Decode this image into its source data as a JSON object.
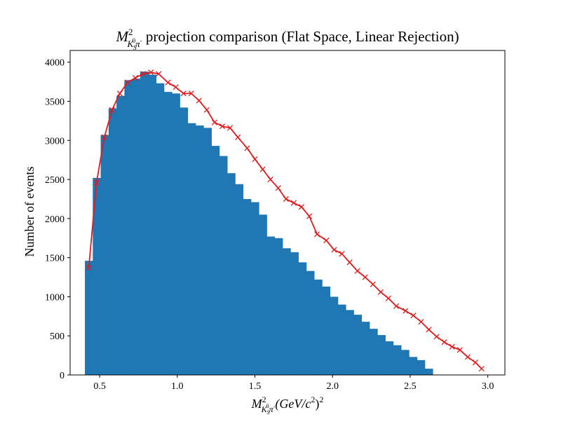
{
  "colors": {
    "bar": "#1f77b4",
    "curve": "#e31a1c",
    "axes": "#000000",
    "background": "#ffffff"
  },
  "title": {
    "prefix": "M",
    "sup": "2",
    "sub_main": "K",
    "sub_sub": "S",
    "sub_sup": "0",
    "sub_tail": "π",
    "sub_charge": "-",
    "rest": " projection comparison (Flat Space, Linear Rejection)"
  },
  "xlabel": {
    "prefix": "M",
    "sup": "2",
    "sub_main": "K",
    "sub_sub": "S",
    "sub_sup": "0",
    "sub_tail": "π",
    "sub_charge": "-",
    "rest": "(GeV/c",
    "rest_sup": "2",
    "rest_close": ")",
    "rest_close_sup": "2"
  },
  "chart_data": {
    "type": "bar",
    "title": "M²_{K_S^0π⁻} projection comparison (Flat Space, Linear Rejection)",
    "ylabel": "Number of events",
    "xlim": [
      0.31,
      3.11
    ],
    "ylim": [
      0,
      4150
    ],
    "grid": false,
    "legend": "none",
    "x_ticks": [
      0.5,
      1.0,
      1.5,
      2.0,
      2.5,
      3.0
    ],
    "x_tick_labels": [
      "0.5",
      "1.0",
      "1.5",
      "2.0",
      "2.5",
      "3.0"
    ],
    "y_ticks": [
      0,
      500,
      1000,
      1500,
      2000,
      2500,
      3000,
      3500,
      4000
    ],
    "y_tick_labels": [
      "0",
      "500",
      "1000",
      "1500",
      "2000",
      "2500",
      "3000",
      "3500",
      "4000"
    ],
    "histogram": {
      "name": "",
      "bin_start": 0.405,
      "bin_width": 0.0509,
      "values": [
        1460,
        2520,
        3070,
        3410,
        3570,
        3770,
        3790,
        3880,
        3840,
        3730,
        3620,
        3600,
        3420,
        3220,
        3190,
        3160,
        2930,
        2800,
        2580,
        2440,
        2250,
        2210,
        2050,
        1770,
        1750,
        1620,
        1570,
        1440,
        1330,
        1220,
        1130,
        1000,
        900,
        830,
        770,
        680,
        590,
        510,
        430,
        380,
        320,
        230,
        190,
        80
      ]
    },
    "series": [
      {
        "name": "",
        "type": "line",
        "marker": "x",
        "x": [
          0.43,
          0.48,
          0.53,
          0.58,
          0.63,
          0.68,
          0.73,
          0.78,
          0.83,
          0.88,
          0.94,
          0.99,
          1.04,
          1.09,
          1.14,
          1.19,
          1.24,
          1.29,
          1.34,
          1.39,
          1.45,
          1.5,
          1.55,
          1.6,
          1.65,
          1.7,
          1.75,
          1.8,
          1.85,
          1.9,
          1.96,
          2.01,
          2.06,
          2.11,
          2.16,
          2.21,
          2.26,
          2.31,
          2.36,
          2.41,
          2.47,
          2.52,
          2.57,
          2.62,
          2.67,
          2.72,
          2.77,
          2.82,
          2.87,
          2.92,
          2.96
        ],
        "y": [
          1370,
          2460,
          3040,
          3390,
          3600,
          3740,
          3800,
          3850,
          3870,
          3850,
          3740,
          3680,
          3600,
          3600,
          3510,
          3390,
          3230,
          3180,
          3160,
          3040,
          2900,
          2760,
          2630,
          2500,
          2390,
          2250,
          2200,
          2150,
          2030,
          1800,
          1720,
          1600,
          1550,
          1440,
          1330,
          1250,
          1160,
          1060,
          980,
          880,
          820,
          760,
          680,
          580,
          490,
          420,
          360,
          320,
          230,
          160,
          80
        ]
      }
    ]
  }
}
